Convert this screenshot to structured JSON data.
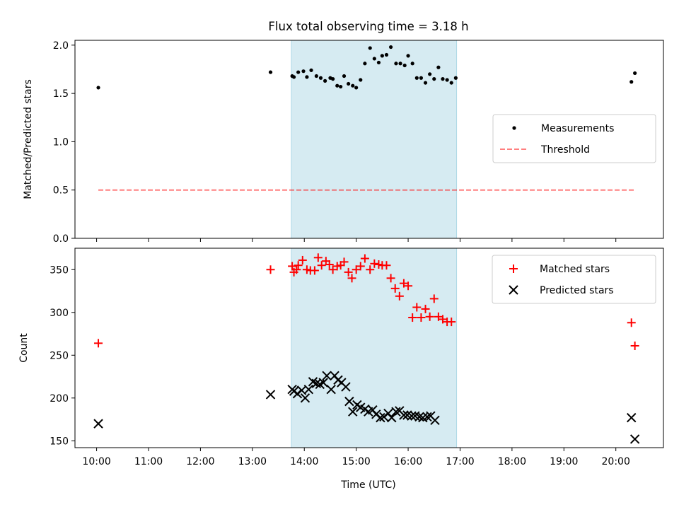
{
  "title": "Flux total observing time = 3.18 h",
  "colors": {
    "shade": "#add8e6",
    "threshold": "#ff0000",
    "matched": "#ff0000",
    "predicted": "#000000",
    "measurement": "#000000"
  },
  "chart_data": [
    {
      "type": "scatter",
      "title": "Flux total observing time = 3.18 h",
      "xlabel": "",
      "ylabel": "Matched/Predicted stars",
      "xlim": [
        "09:35",
        "20:55"
      ],
      "ylim": [
        0,
        2.05
      ],
      "yticks": [
        0.0,
        0.5,
        1.0,
        1.5,
        2.0
      ],
      "ytick_labels": [
        "0.0",
        "0.5",
        "1.0",
        "1.5",
        "2.0"
      ],
      "shaded_span": [
        "13:45",
        "16:56"
      ],
      "legend": {
        "placement": "center-right",
        "entries": [
          "Measurements",
          "Threshold"
        ]
      },
      "series": [
        {
          "name": "Measurements",
          "marker": "dot",
          "points": [
            [
              "10:02",
              1.56
            ],
            [
              "13:21",
              1.72
            ],
            [
              "13:46",
              1.68
            ],
            [
              "13:48",
              1.67
            ],
            [
              "13:53",
              1.72
            ],
            [
              "13:59",
              1.73
            ],
            [
              "14:03",
              1.67
            ],
            [
              "14:08",
              1.74
            ],
            [
              "14:14",
              1.68
            ],
            [
              "14:19",
              1.66
            ],
            [
              "14:24",
              1.63
            ],
            [
              "14:30",
              1.66
            ],
            [
              "14:33",
              1.65
            ],
            [
              "14:38",
              1.58
            ],
            [
              "14:42",
              1.57
            ],
            [
              "14:46",
              1.68
            ],
            [
              "14:51",
              1.6
            ],
            [
              "14:56",
              1.58
            ],
            [
              "15:00",
              1.56
            ],
            [
              "15:05",
              1.64
            ],
            [
              "15:10",
              1.81
            ],
            [
              "15:16",
              1.97
            ],
            [
              "15:21",
              1.86
            ],
            [
              "15:26",
              1.82
            ],
            [
              "15:30",
              1.89
            ],
            [
              "15:35",
              1.9
            ],
            [
              "15:40",
              1.98
            ],
            [
              "15:46",
              1.81
            ],
            [
              "15:51",
              1.81
            ],
            [
              "15:56",
              1.79
            ],
            [
              "16:00",
              1.89
            ],
            [
              "16:05",
              1.81
            ],
            [
              "16:10",
              1.66
            ],
            [
              "16:15",
              1.66
            ],
            [
              "16:20",
              1.61
            ],
            [
              "16:25",
              1.7
            ],
            [
              "16:30",
              1.65
            ],
            [
              "16:35",
              1.77
            ],
            [
              "16:40",
              1.65
            ],
            [
              "16:45",
              1.64
            ],
            [
              "16:50",
              1.61
            ],
            [
              "16:55",
              1.66
            ],
            [
              "20:18",
              1.62
            ],
            [
              "20:22",
              1.71
            ]
          ]
        },
        {
          "name": "Threshold",
          "marker": "dashed-line",
          "points": [
            [
              "10:02",
              0.5
            ],
            [
              "20:22",
              0.5
            ]
          ]
        }
      ]
    },
    {
      "type": "scatter",
      "xlabel": "Time (UTC)",
      "ylabel": "Count",
      "xlim": [
        "09:35",
        "20:55"
      ],
      "ylim": [
        142,
        375
      ],
      "xticks": [
        "10:00",
        "11:00",
        "12:00",
        "13:00",
        "14:00",
        "15:00",
        "16:00",
        "17:00",
        "18:00",
        "19:00",
        "20:00"
      ],
      "yticks": [
        150,
        200,
        250,
        300,
        350
      ],
      "shaded_span": [
        "13:45",
        "16:56"
      ],
      "legend": {
        "placement": "top-right",
        "entries": [
          "Matched stars",
          "Predicted stars"
        ]
      },
      "series": [
        {
          "name": "Matched stars",
          "marker": "plus",
          "points": [
            [
              "10:02",
              264
            ],
            [
              "13:21",
              350
            ],
            [
              "13:46",
              354
            ],
            [
              "13:48",
              347
            ],
            [
              "13:51",
              350
            ],
            [
              "13:53",
              355
            ],
            [
              "13:58",
              361
            ],
            [
              "14:03",
              350
            ],
            [
              "14:07",
              349
            ],
            [
              "14:12",
              349
            ],
            [
              "14:16",
              364
            ],
            [
              "14:20",
              355
            ],
            [
              "14:25",
              360
            ],
            [
              "14:29",
              356
            ],
            [
              "14:33",
              350
            ],
            [
              "14:38",
              354
            ],
            [
              "14:42",
              355
            ],
            [
              "14:46",
              359
            ],
            [
              "14:51",
              347
            ],
            [
              "14:55",
              340
            ],
            [
              "15:00",
              350
            ],
            [
              "15:05",
              354
            ],
            [
              "15:10",
              363
            ],
            [
              "15:16",
              350
            ],
            [
              "15:21",
              357
            ],
            [
              "15:26",
              356
            ],
            [
              "15:30",
              355
            ],
            [
              "15:35",
              355
            ],
            [
              "15:40",
              340
            ],
            [
              "15:45",
              328
            ],
            [
              "15:50",
              319
            ],
            [
              "15:55",
              334
            ],
            [
              "16:00",
              331
            ],
            [
              "16:05",
              294
            ],
            [
              "16:10",
              306
            ],
            [
              "16:15",
              294
            ],
            [
              "16:20",
              304
            ],
            [
              "16:25",
              295
            ],
            [
              "16:30",
              316
            ],
            [
              "16:35",
              295
            ],
            [
              "16:40",
              292
            ],
            [
              "16:45",
              289
            ],
            [
              "16:50",
              289
            ],
            [
              "20:18",
              288
            ],
            [
              "20:22",
              261
            ]
          ]
        },
        {
          "name": "Predicted stars",
          "marker": "x",
          "points": [
            [
              "10:02",
              170
            ],
            [
              "13:21",
              204
            ],
            [
              "13:46",
              210
            ],
            [
              "13:48",
              208
            ],
            [
              "13:52",
              205
            ],
            [
              "13:57",
              209
            ],
            [
              "14:01",
              200
            ],
            [
              "14:05",
              210
            ],
            [
              "14:10",
              219
            ],
            [
              "14:14",
              217
            ],
            [
              "14:18",
              216
            ],
            [
              "14:22",
              218
            ],
            [
              "14:26",
              226
            ],
            [
              "14:31",
              210
            ],
            [
              "14:35",
              226
            ],
            [
              "14:39",
              221
            ],
            [
              "14:43",
              218
            ],
            [
              "14:48",
              213
            ],
            [
              "14:52",
              196
            ],
            [
              "14:56",
              184
            ],
            [
              "15:01",
              192
            ],
            [
              "15:05",
              189
            ],
            [
              "15:10",
              187
            ],
            [
              "15:14",
              184
            ],
            [
              "15:19",
              186
            ],
            [
              "15:23",
              181
            ],
            [
              "15:28",
              177
            ],
            [
              "15:32",
              178
            ],
            [
              "15:37",
              182
            ],
            [
              "15:41",
              177
            ],
            [
              "15:46",
              184
            ],
            [
              "15:50",
              185
            ],
            [
              "15:55",
              180
            ],
            [
              "15:59",
              180
            ],
            [
              "16:04",
              179
            ],
            [
              "16:08",
              179
            ],
            [
              "16:13",
              178
            ],
            [
              "16:17",
              177
            ],
            [
              "16:22",
              178
            ],
            [
              "16:26",
              179
            ],
            [
              "16:31",
              174
            ],
            [
              "20:18",
              177
            ],
            [
              "20:22",
              152
            ]
          ]
        }
      ]
    }
  ]
}
